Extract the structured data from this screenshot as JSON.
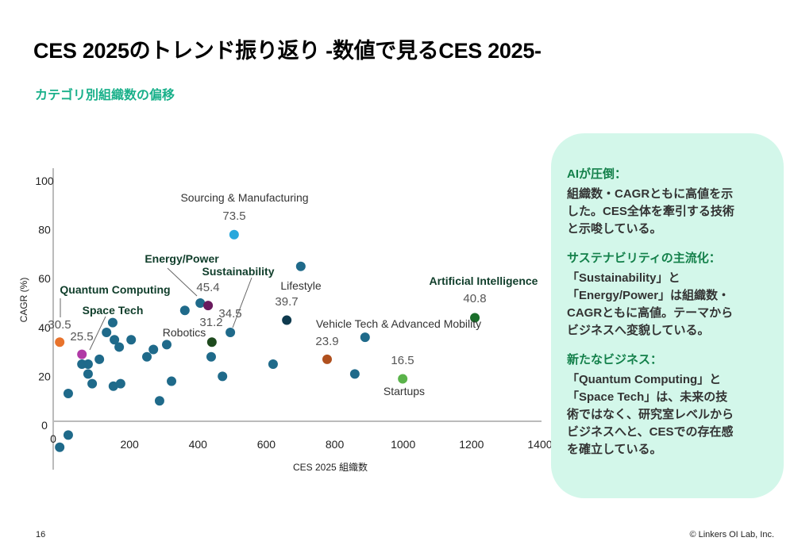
{
  "title": "CES 2025のトレンド振り返り -数値で見るCES 2025-",
  "subtitle": "カテゴリ別組織数の偏移",
  "page_number": "16",
  "copyright": "© Linkers OI Lab, Inc.",
  "panel": {
    "sections": [
      {
        "heading": "AIが圧倒：",
        "body": "組織数・CAGRともに高値を示\nした。CES全体を牽引する技術\nと示唆している。"
      },
      {
        "heading": "サステナビリティの主流化：",
        "body": "「Sustainability」と\n「Energy/Power」は組織数・\nCAGRともに高値。テーマから\nビジネスへ変貌している。"
      },
      {
        "heading": "新たなビジネス：",
        "body": "「Quantum Computing」と\n「Space Tech」は、未来の技\n術ではなく、研究室レベルから\nビジネスへと、CESでの存在感\nを確立している。"
      }
    ],
    "colors": {
      "background": "#d3f7ea",
      "heading": "#13804a"
    }
  },
  "chart_data": {
    "type": "scatter",
    "xlabel": "CES 2025 組織数",
    "ylabel": "CAGR (%)",
    "xlim": [
      0,
      1400
    ],
    "ylim": [
      -15,
      100
    ],
    "xticks": [
      "0",
      "200",
      "400",
      "600",
      "800",
      "1000",
      "1200",
      "1400"
    ],
    "yticks": [
      "0",
      "20",
      "40",
      "60",
      "80",
      "100"
    ],
    "grid": false,
    "default_color": "#1f6a8a",
    "points": [
      {
        "x": 19,
        "y": 34,
        "color": "#e8732c"
      },
      {
        "x": 84,
        "y": 29,
        "color": "#b03aa6"
      },
      {
        "x": 44,
        "y": 13
      },
      {
        "x": 19,
        "y": -9
      },
      {
        "x": 44,
        "y": -4
      },
      {
        "x": 84,
        "y": 25
      },
      {
        "x": 102,
        "y": 25
      },
      {
        "x": 102,
        "y": 21
      },
      {
        "x": 114,
        "y": 17
      },
      {
        "x": 135,
        "y": 27
      },
      {
        "x": 156,
        "y": 38
      },
      {
        "x": 174,
        "y": 42
      },
      {
        "x": 179,
        "y": 35
      },
      {
        "x": 193,
        "y": 32
      },
      {
        "x": 176,
        "y": 16
      },
      {
        "x": 197,
        "y": 17
      },
      {
        "x": 228,
        "y": 35
      },
      {
        "x": 274,
        "y": 28
      },
      {
        "x": 293,
        "y": 31
      },
      {
        "x": 311,
        "y": 10
      },
      {
        "x": 332,
        "y": 33
      },
      {
        "x": 346,
        "y": 18
      },
      {
        "x": 385,
        "y": 47
      },
      {
        "x": 430,
        "y": 50
      },
      {
        "x": 453,
        "y": 49,
        "color": "#6a1a5e"
      },
      {
        "x": 462,
        "y": 28
      },
      {
        "x": 464,
        "y": 34,
        "color": "#1e4a1e"
      },
      {
        "x": 495,
        "y": 20
      },
      {
        "x": 518,
        "y": 38
      },
      {
        "x": 529,
        "y": 78,
        "color": "#29a8dc"
      },
      {
        "x": 643,
        "y": 25
      },
      {
        "x": 724,
        "y": 65
      },
      {
        "x": 683,
        "y": 43,
        "color": "#0e3a4e"
      },
      {
        "x": 801,
        "y": 27,
        "color": "#b0501e"
      },
      {
        "x": 912,
        "y": 36
      },
      {
        "x": 882,
        "y": 21
      },
      {
        "x": 1022,
        "y": 19,
        "color": "#5ab34a"
      },
      {
        "x": 1233,
        "y": 44,
        "color": "#1a6e2a"
      }
    ],
    "annotations": {
      "sourcing": {
        "label": "Sourcing & Manufacturing",
        "value": "73.5"
      },
      "energy": {
        "label": "Energy/Power",
        "value": "45.4"
      },
      "sustainability": {
        "label": "Sustainability",
        "value": "34.5"
      },
      "robotics": {
        "label": "Robotics",
        "value": "31.2"
      },
      "quantum": {
        "label": "Quantum Computing",
        "value": "30.5"
      },
      "space": {
        "label": "Space Tech",
        "value": "25.5"
      },
      "lifestyle": {
        "label": "Lifestyle",
        "value": "39.7"
      },
      "vehicle": {
        "label": "Vehicle Tech & Advanced Mobility",
        "value": "23.9"
      },
      "ai": {
        "label": "Artificial Intelligence",
        "value": "40.8"
      },
      "startups": {
        "label": "Startups",
        "value": "16.5"
      }
    }
  }
}
